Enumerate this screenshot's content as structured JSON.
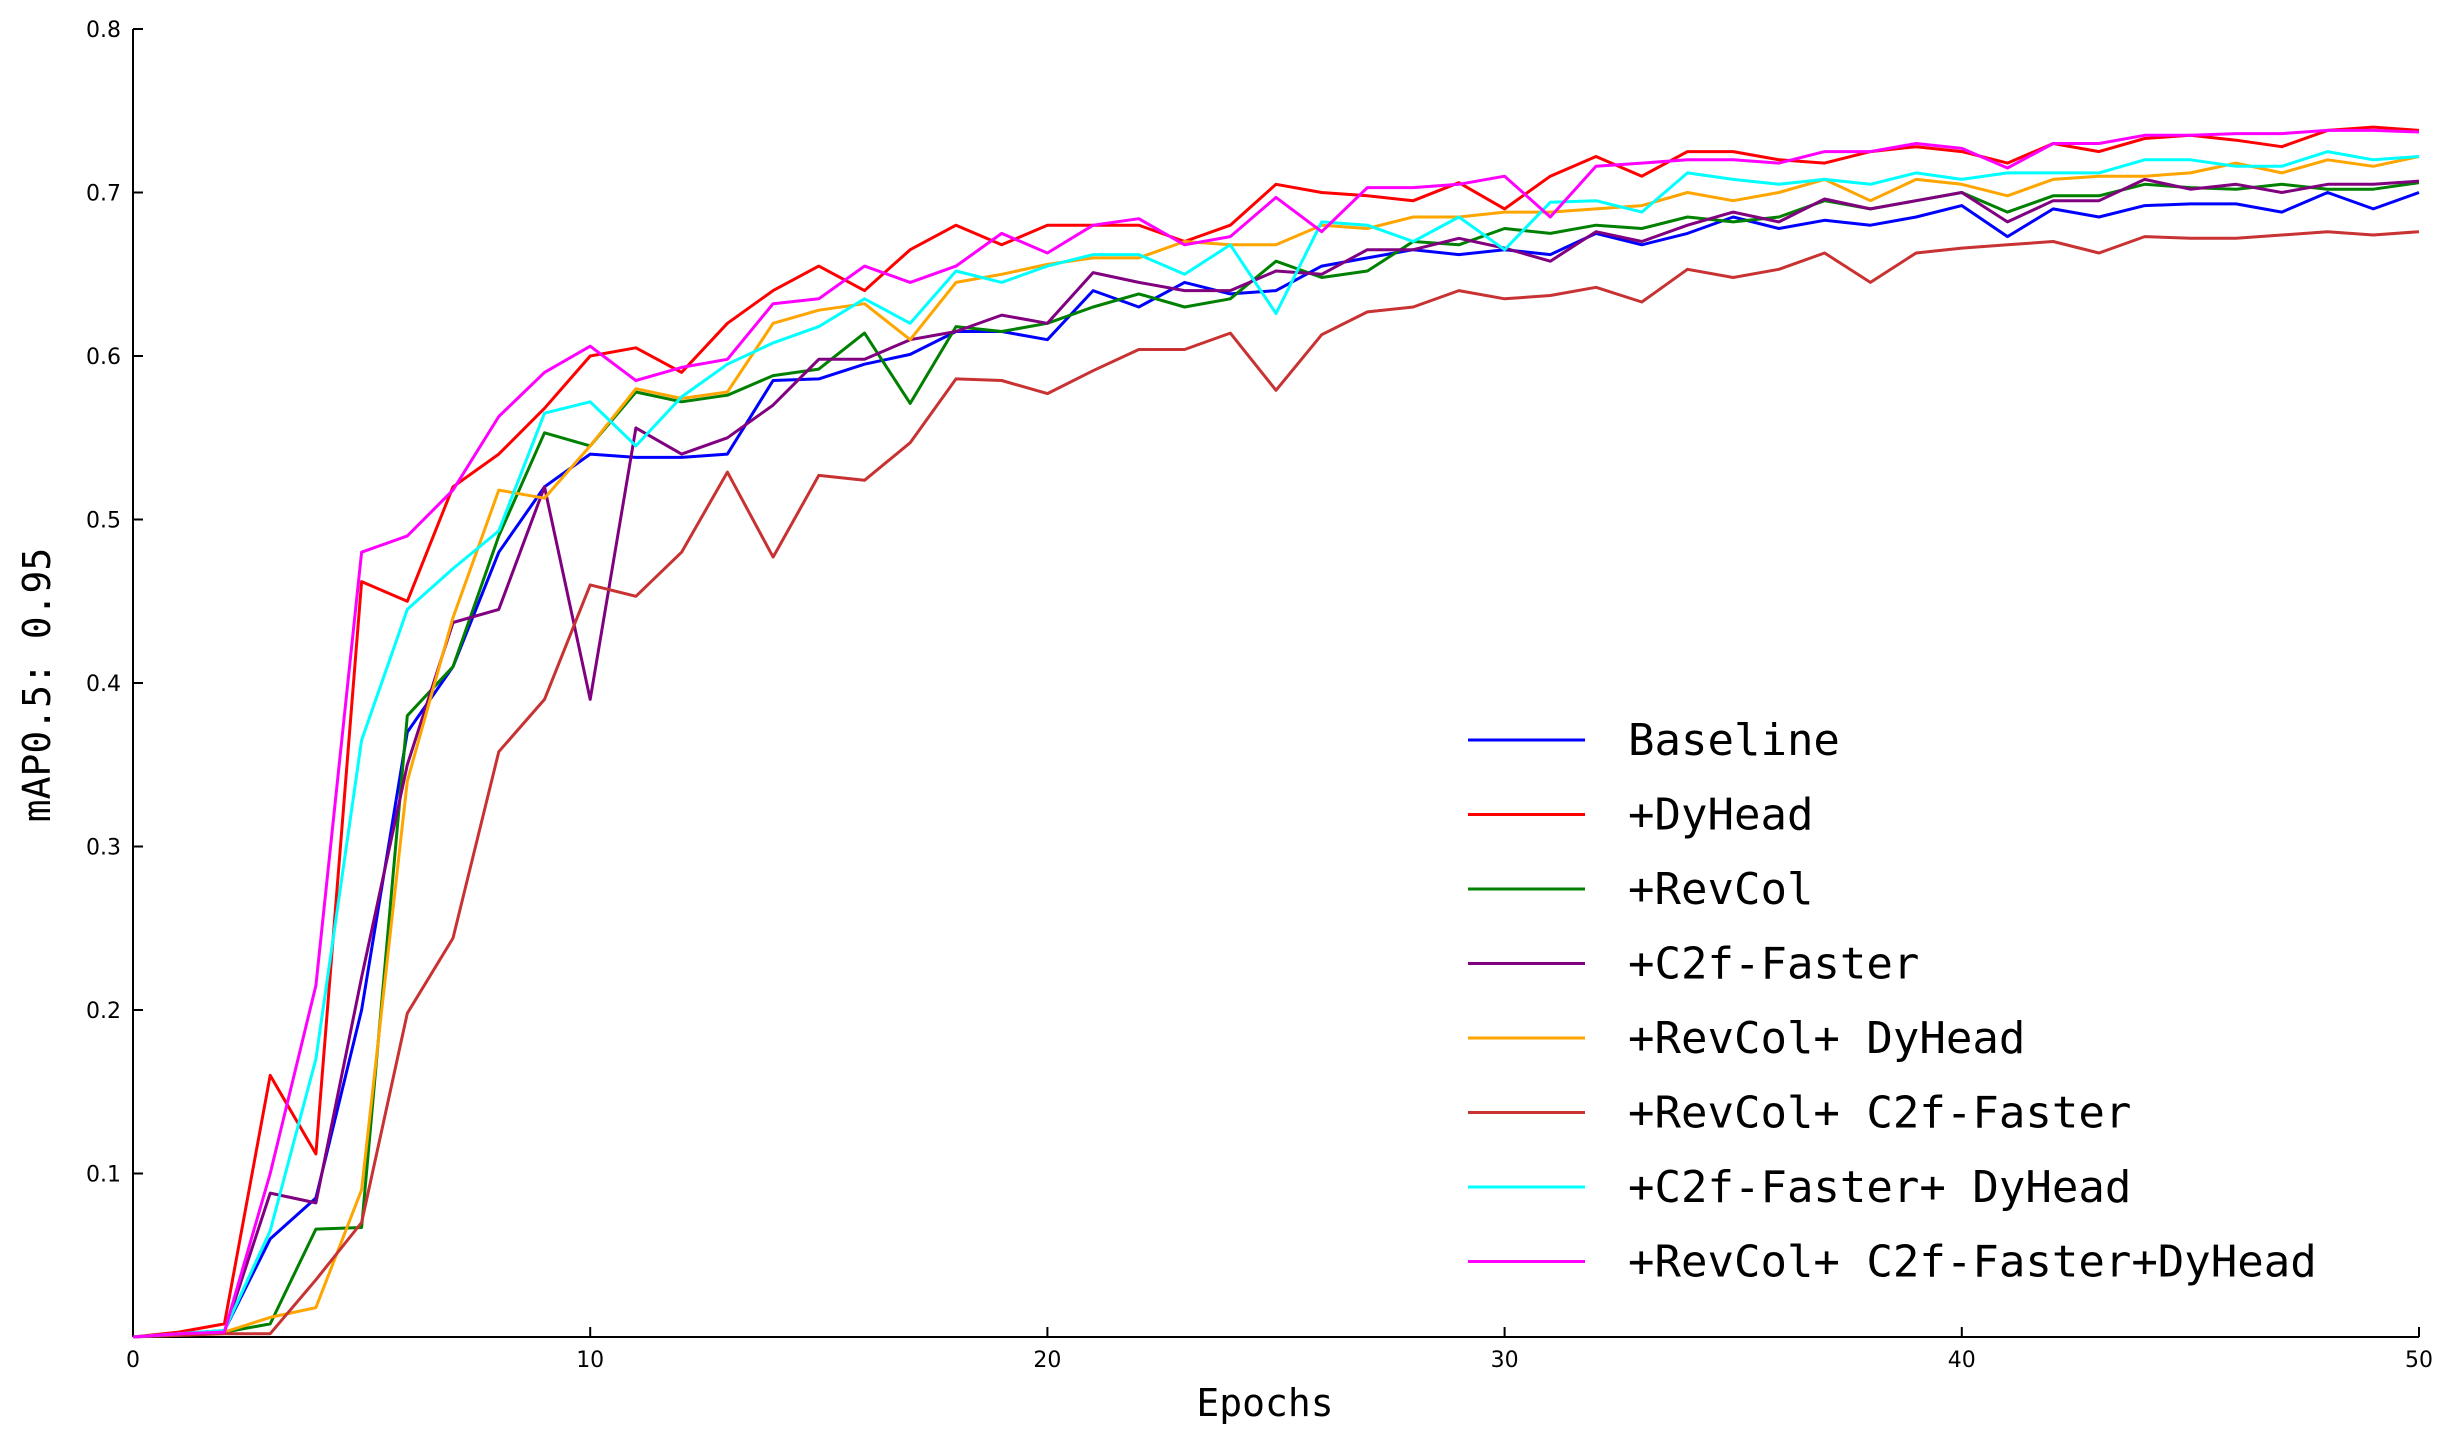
{
  "chart_data": {
    "type": "line",
    "xlabel": "Epochs",
    "ylabel": "mAP0.5: 0.95",
    "xlim": [
      0,
      50
    ],
    "ylim": [
      0,
      0.8
    ],
    "xticks": [
      0,
      10,
      20,
      30,
      40,
      50
    ],
    "xtick_labels": [
      "0",
      "10",
      "20",
      "30",
      "40",
      "50"
    ],
    "yticks": [
      0.1,
      0.2,
      0.3,
      0.4,
      0.5,
      0.6,
      0.7,
      0.8
    ],
    "ytick_labels": [
      "0.1",
      "0.2",
      "0.3",
      "0.4",
      "0.5",
      "0.6",
      "0.7",
      "0.8"
    ],
    "grid": false,
    "legend_position": "lower-right",
    "x": [
      0,
      1,
      2,
      3,
      4,
      5,
      6,
      7,
      8,
      9,
      10,
      11,
      12,
      13,
      14,
      15,
      16,
      17,
      18,
      19,
      20,
      21,
      22,
      23,
      24,
      25,
      26,
      27,
      28,
      29,
      30,
      31,
      32,
      33,
      34,
      35,
      36,
      37,
      38,
      39,
      40,
      41,
      42,
      43,
      44,
      45,
      46,
      47,
      48,
      49,
      50
    ],
    "series": [
      {
        "name": "Baseline",
        "color": "#0000ff",
        "values": [
          0,
          0.002,
          0.004,
          0.06,
          0.085,
          0.2,
          0.37,
          0.41,
          0.48,
          0.52,
          0.54,
          0.538,
          0.538,
          0.54,
          0.585,
          0.586,
          0.595,
          0.601,
          0.615,
          0.615,
          0.61,
          0.64,
          0.63,
          0.645,
          0.638,
          0.64,
          0.655,
          0.66,
          0.665,
          0.662,
          0.665,
          0.662,
          0.675,
          0.668,
          0.675,
          0.685,
          0.678,
          0.683,
          0.68,
          0.685,
          0.692,
          0.673,
          0.69,
          0.685,
          0.692,
          0.693,
          0.693,
          0.688,
          0.7,
          0.69,
          0.7
        ]
      },
      {
        "name": "+DyHead",
        "color": "#ff0000",
        "values": [
          0,
          0.003,
          0.008,
          0.16,
          0.112,
          0.462,
          0.45,
          0.52,
          0.54,
          0.568,
          0.6,
          0.605,
          0.59,
          0.62,
          0.64,
          0.655,
          0.64,
          0.665,
          0.68,
          0.668,
          0.68,
          0.68,
          0.68,
          0.67,
          0.68,
          0.705,
          0.7,
          0.698,
          0.695,
          0.706,
          0.69,
          0.71,
          0.722,
          0.71,
          0.725,
          0.725,
          0.72,
          0.718,
          0.725,
          0.728,
          0.725,
          0.718,
          0.73,
          0.725,
          0.733,
          0.735,
          0.732,
          0.728,
          0.738,
          0.74,
          0.738
        ]
      },
      {
        "name": "+RevCol",
        "color": "#008000",
        "values": [
          0,
          0.002,
          0.003,
          0.008,
          0.066,
          0.067,
          0.38,
          0.41,
          0.49,
          0.553,
          0.545,
          0.578,
          0.572,
          0.576,
          0.588,
          0.592,
          0.614,
          0.571,
          0.618,
          0.615,
          0.62,
          0.63,
          0.638,
          0.63,
          0.635,
          0.658,
          0.648,
          0.652,
          0.67,
          0.668,
          0.678,
          0.675,
          0.68,
          0.678,
          0.685,
          0.682,
          0.685,
          0.695,
          0.69,
          0.695,
          0.7,
          0.688,
          0.698,
          0.698,
          0.705,
          0.703,
          0.702,
          0.705,
          0.702,
          0.702,
          0.706
        ]
      },
      {
        "name": "+C2f-Faster",
        "color": "#800080",
        "values": [
          0,
          0.002,
          0.003,
          0.088,
          0.082,
          0.22,
          0.35,
          0.437,
          0.445,
          0.52,
          0.39,
          0.556,
          0.54,
          0.55,
          0.57,
          0.598,
          0.598,
          0.61,
          0.615,
          0.625,
          0.62,
          0.651,
          0.645,
          0.64,
          0.64,
          0.652,
          0.65,
          0.665,
          0.665,
          0.672,
          0.666,
          0.658,
          0.676,
          0.67,
          0.68,
          0.688,
          0.682,
          0.696,
          0.69,
          0.695,
          0.7,
          0.682,
          0.695,
          0.695,
          0.708,
          0.702,
          0.705,
          0.7,
          0.705,
          0.705,
          0.707
        ]
      },
      {
        "name": "+RevCol+ DyHead",
        "color": "#ffa500",
        "values": [
          0,
          0.002,
          0.003,
          0.012,
          0.018,
          0.09,
          0.34,
          0.44,
          0.518,
          0.513,
          0.545,
          0.58,
          0.574,
          0.578,
          0.62,
          0.628,
          0.632,
          0.61,
          0.645,
          0.65,
          0.656,
          0.66,
          0.66,
          0.67,
          0.668,
          0.668,
          0.68,
          0.678,
          0.685,
          0.685,
          0.688,
          0.688,
          0.69,
          0.692,
          0.7,
          0.695,
          0.7,
          0.708,
          0.695,
          0.708,
          0.705,
          0.698,
          0.708,
          0.71,
          0.71,
          0.712,
          0.718,
          0.712,
          0.72,
          0.716,
          0.722
        ]
      },
      {
        "name": "+RevCol+ C2f-Faster",
        "color": "#c83232",
        "values": [
          0,
          0.001,
          0.002,
          0.002,
          0.035,
          0.07,
          0.198,
          0.244,
          0.358,
          0.39,
          0.46,
          0.453,
          0.48,
          0.529,
          0.477,
          0.527,
          0.524,
          0.547,
          0.586,
          0.585,
          0.577,
          0.591,
          0.604,
          0.604,
          0.614,
          0.579,
          0.613,
          0.627,
          0.63,
          0.64,
          0.635,
          0.637,
          0.642,
          0.633,
          0.653,
          0.648,
          0.653,
          0.663,
          0.645,
          0.663,
          0.666,
          0.668,
          0.67,
          0.663,
          0.673,
          0.672,
          0.672,
          0.674,
          0.676,
          0.674,
          0.676
        ]
      },
      {
        "name": "+C2f-Faster+ DyHead",
        "color": "#00ffff",
        "values": [
          0,
          0.002,
          0.004,
          0.065,
          0.17,
          0.365,
          0.445,
          0.47,
          0.493,
          0.565,
          0.572,
          0.545,
          0.575,
          0.595,
          0.608,
          0.618,
          0.635,
          0.62,
          0.652,
          0.645,
          0.655,
          0.662,
          0.662,
          0.65,
          0.668,
          0.626,
          0.682,
          0.68,
          0.67,
          0.685,
          0.665,
          0.694,
          0.695,
          0.688,
          0.712,
          0.708,
          0.705,
          0.708,
          0.705,
          0.712,
          0.708,
          0.712,
          0.712,
          0.712,
          0.72,
          0.72,
          0.716,
          0.716,
          0.725,
          0.72,
          0.722
        ]
      },
      {
        "name": "+RevCol+ C2f-Faster+DyHead",
        "color": "#ff00ff",
        "values": [
          0,
          0.002,
          0.003,
          0.1,
          0.215,
          0.48,
          0.49,
          0.518,
          0.563,
          0.59,
          0.606,
          0.585,
          0.593,
          0.598,
          0.632,
          0.635,
          0.655,
          0.645,
          0.655,
          0.675,
          0.663,
          0.68,
          0.684,
          0.668,
          0.673,
          0.697,
          0.676,
          0.703,
          0.703,
          0.705,
          0.71,
          0.685,
          0.716,
          0.718,
          0.72,
          0.72,
          0.718,
          0.725,
          0.725,
          0.73,
          0.727,
          0.715,
          0.73,
          0.73,
          0.735,
          0.735,
          0.736,
          0.736,
          0.738,
          0.738,
          0.737
        ]
      }
    ]
  }
}
